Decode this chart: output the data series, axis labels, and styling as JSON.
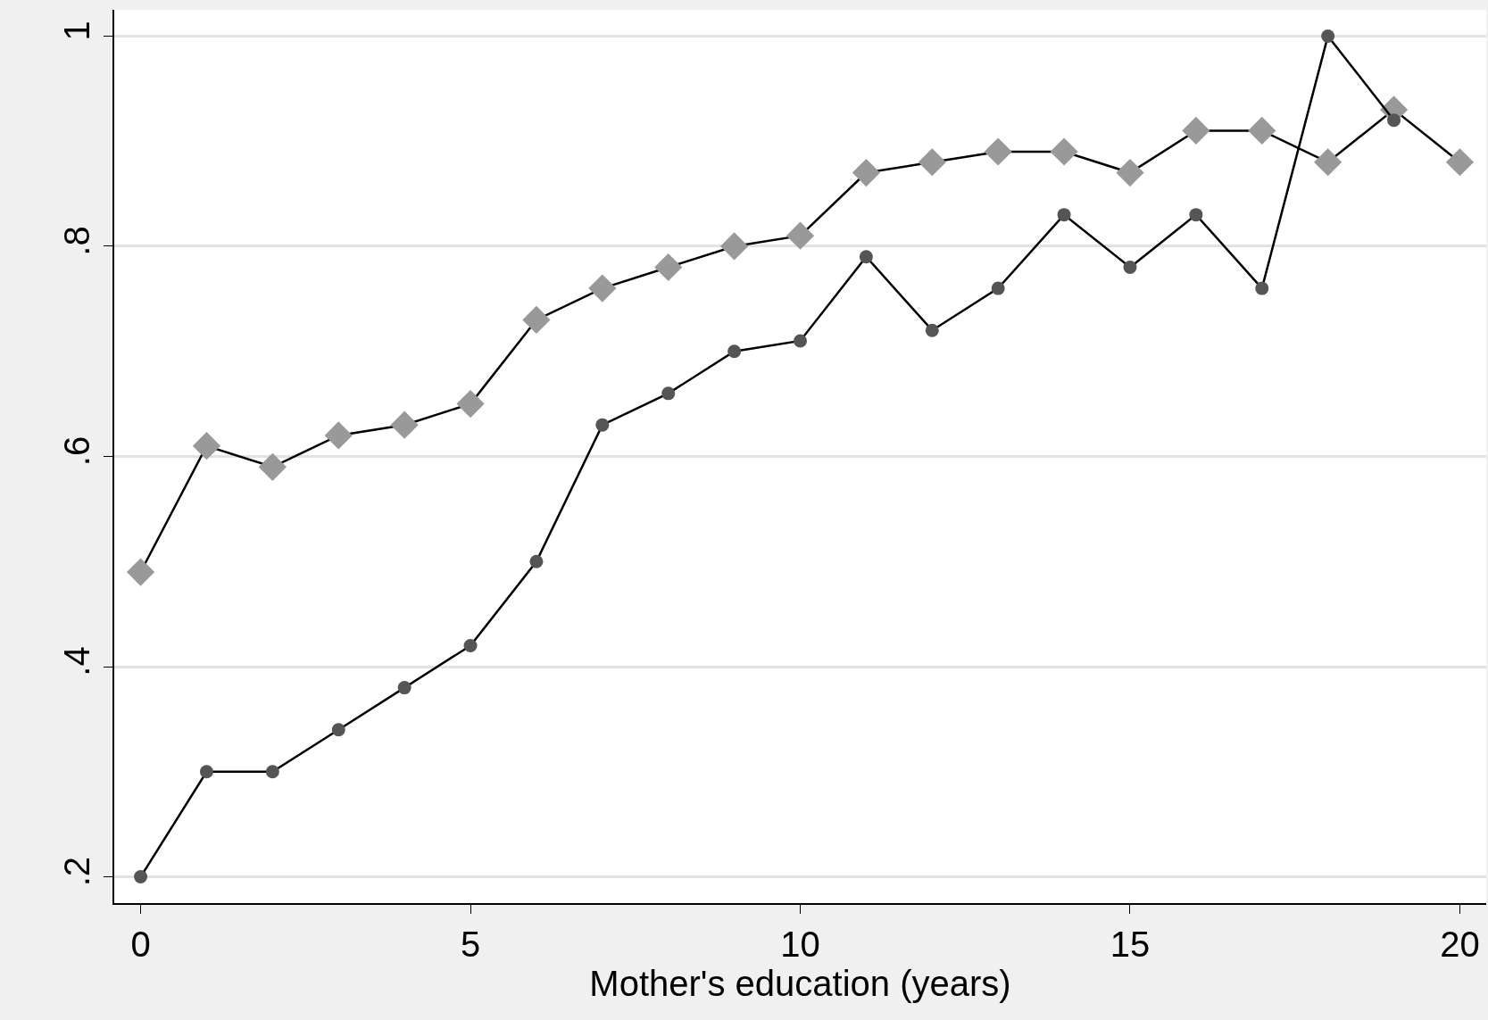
{
  "chart_data": {
    "type": "line",
    "xlabel": "Mother's education (years)",
    "x": [
      0,
      1,
      2,
      3,
      4,
      5,
      6,
      7,
      8,
      9,
      10,
      11,
      12,
      13,
      14,
      15,
      16,
      17,
      18,
      19,
      20
    ],
    "series": [
      {
        "color": "#999999",
        "marker": "diamond",
        "values": [
          0.49,
          0.61,
          0.59,
          0.62,
          0.63,
          0.65,
          0.73,
          0.76,
          0.78,
          0.8,
          0.81,
          0.87,
          0.88,
          0.89,
          0.89,
          0.87,
          0.91,
          0.91,
          0.88,
          0.93,
          0.88
        ]
      },
      {
        "color": "#555555",
        "marker": "circle",
        "values": [
          0.2,
          0.3,
          0.3,
          0.34,
          0.38,
          0.42,
          0.5,
          0.63,
          0.66,
          0.7,
          0.71,
          0.79,
          0.72,
          0.76,
          0.83,
          0.78,
          0.83,
          0.76,
          1.0,
          0.92,
          null
        ]
      }
    ],
    "xlim": [
      -0.4,
      20.4
    ],
    "ylim": [
      0.175,
      1.025
    ],
    "xticks": [
      0,
      5,
      10,
      15,
      20
    ],
    "yticks": [
      {
        "value": 0.2,
        "label": ".2"
      },
      {
        "value": 0.4,
        "label": ".4"
      },
      {
        "value": 0.6,
        "label": ".6"
      },
      {
        "value": 0.8,
        "label": ".8"
      },
      {
        "value": 1,
        "label": "1"
      }
    ],
    "grid": "y",
    "line_style": "solid"
  }
}
